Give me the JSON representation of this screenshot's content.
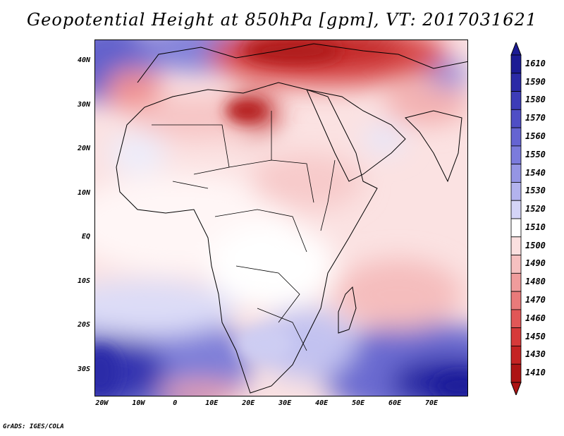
{
  "title": "Geopotential Height at 850hPa [gpm], VT: 2017031621",
  "credit": "GrADS: IGES/COLA",
  "map": {
    "lon_range": [
      -22,
      80
    ],
    "lat_range": [
      -36,
      45
    ],
    "y_ticks": [
      {
        "label": "40N",
        "lat": 40
      },
      {
        "label": "30N",
        "lat": 30
      },
      {
        "label": "20N",
        "lat": 20
      },
      {
        "label": "10N",
        "lat": 10
      },
      {
        "label": "EQ",
        "lat": 0
      },
      {
        "label": "10S",
        "lat": -10
      },
      {
        "label": "20S",
        "lat": -20
      },
      {
        "label": "30S",
        "lat": -30
      }
    ],
    "x_ticks": [
      {
        "label": "20W",
        "lon": -20
      },
      {
        "label": "10W",
        "lon": -10
      },
      {
        "label": "0",
        "lon": 0
      },
      {
        "label": "10E",
        "lon": 10
      },
      {
        "label": "20E",
        "lon": 20
      },
      {
        "label": "30E",
        "lon": 30
      },
      {
        "label": "40E",
        "lon": 40
      },
      {
        "label": "50E",
        "lon": 50
      },
      {
        "label": "60E",
        "lon": 60
      },
      {
        "label": "70E",
        "lon": 70
      }
    ]
  },
  "colorbar": {
    "labels": [
      "1610",
      "1590",
      "1580",
      "1570",
      "1560",
      "1550",
      "1540",
      "1530",
      "1520",
      "1510",
      "1500",
      "1490",
      "1480",
      "1470",
      "1460",
      "1450",
      "1430",
      "1410"
    ],
    "colors": [
      "#1c1b94",
      "#2b2aa6",
      "#3d3cb8",
      "#4f4ec5",
      "#6564d2",
      "#7b7bdc",
      "#9595e4",
      "#b3b3ee",
      "#d4d4f7",
      "#ffffff",
      "#fbe0e0",
      "#f6c0c0",
      "#f09c9c",
      "#e97a7a",
      "#e15757",
      "#d63a3a",
      "#c42323",
      "#ad1414"
    ]
  }
}
